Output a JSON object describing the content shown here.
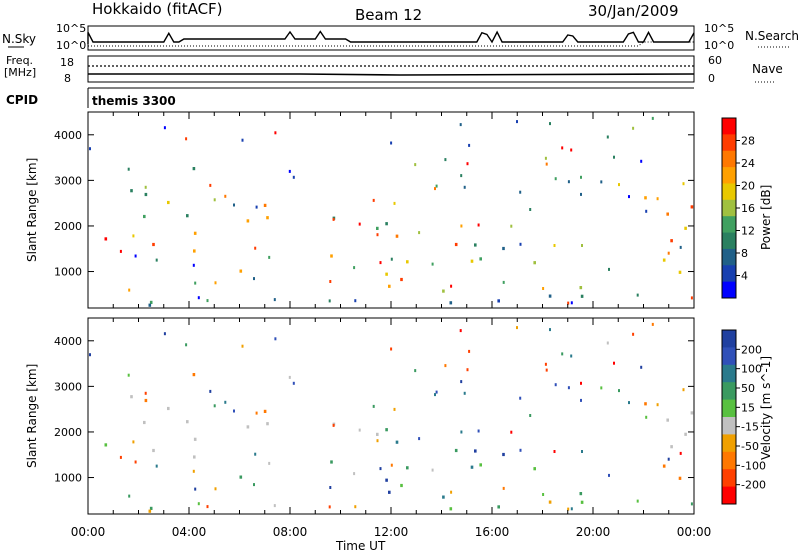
{
  "header": {
    "station": "Hokkaido (fitACF)",
    "beam": "Beam 12",
    "date": "30/Jan/2009"
  },
  "panels": {
    "nsky": {
      "label": "N.Sky",
      "left_ticks": [
        "10^5",
        "10^0"
      ],
      "right_label": "N.Search",
      "right_ticks": [
        "10^5",
        "10^0"
      ]
    },
    "freq": {
      "label_line1": "Freq.",
      "label_line2": "[MHz]",
      "left_ticks": [
        "18",
        "8"
      ],
      "right_label": "Nave",
      "right_ticks": [
        "60",
        "0"
      ]
    },
    "cpid": {
      "label": "CPID",
      "value": "themis 3300"
    }
  },
  "colorbars": {
    "power": {
      "title": "Power [dB]",
      "ticks": [
        "28",
        "24",
        "20",
        "16",
        "12",
        "8",
        "4"
      ],
      "colors": [
        "#ff0000",
        "#ff3c00",
        "#ff7800",
        "#ffa000",
        "#e8c800",
        "#a0c040",
        "#40a060",
        "#2a8060",
        "#206088",
        "#1840b0",
        "#0000ff"
      ]
    },
    "velocity": {
      "title": "Velocity [m s^-1]",
      "ticks": [
        "200",
        "100",
        "50",
        "15",
        "-15",
        "-50",
        "-100",
        "-200"
      ],
      "colors": [
        "#2040a0",
        "#3050b8",
        "#2a7a8c",
        "#3a9a60",
        "#58c040",
        "#c0c0c0",
        "#f0a000",
        "#ff7800",
        "#ff4000",
        "#ff0000"
      ]
    }
  },
  "chart_data": [
    {
      "type": "heatmap",
      "name": "power",
      "ylabel": "Slant Range [km]",
      "yticks": [
        "1000",
        "2000",
        "3000",
        "4000"
      ],
      "ylim": [
        200,
        4500
      ],
      "xlim": [
        0,
        24
      ],
      "xticks": [
        "00:00",
        "04:00",
        "08:00",
        "12:00",
        "16:00",
        "20:00",
        "00:00"
      ],
      "xlabel": "Time UT"
    },
    {
      "type": "heatmap",
      "name": "velocity",
      "ylabel": "Slant Range [km]",
      "yticks": [
        "1000",
        "2000",
        "3000",
        "4000"
      ],
      "ylim": [
        200,
        4500
      ],
      "xlim": [
        0,
        24
      ],
      "xticks": [
        "00:00",
        "04:00",
        "08:00",
        "12:00",
        "16:00",
        "20:00",
        "00:00"
      ],
      "xlabel": "Time UT"
    }
  ]
}
